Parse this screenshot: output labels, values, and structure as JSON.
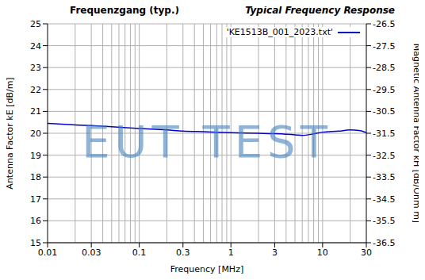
{
  "chart_data": {
    "type": "line",
    "title": "Frequenzgang (typ.)",
    "subtitle": "Typical Frequency Response",
    "x_label": "Frequency [MHz]",
    "y_label": "Antenna Factor kE [dB/m]",
    "y2_label": "Magnetic Antenna Factor kH [dB/Ohm m]",
    "annotations": [
      "EUT TEST"
    ],
    "log": "x",
    "grid": true,
    "legend": "upper right",
    "x": [
      0.01,
      0.02,
      0.03,
      0.05,
      0.1,
      0.2,
      0.3,
      0.5,
      1,
      2,
      3,
      5,
      6,
      8,
      10,
      15,
      20,
      25,
      30
    ],
    "series": [
      {
        "name": "'KE1513B_001_2023.txt'",
        "color": "#0000cc",
        "values": [
          20.45,
          20.38,
          20.35,
          20.3,
          20.22,
          20.15,
          20.1,
          20.07,
          20.03,
          20.0,
          19.98,
          19.93,
          19.9,
          19.97,
          20.05,
          20.1,
          20.15,
          20.13,
          20.03
        ]
      }
    ],
    "xlim": [
      0.01,
      30
    ],
    "xticks": [
      0.01,
      0.03,
      0.1,
      0.3,
      1,
      3,
      10,
      30
    ],
    "ylim": [
      15,
      25
    ],
    "yticks": [
      15,
      16,
      17,
      18,
      19,
      20,
      21,
      22,
      23,
      24,
      25
    ],
    "y2lim": [
      -36.5,
      -26.5
    ],
    "y2ticks": [
      -36.5,
      -35.5,
      -34.5,
      -33.5,
      -32.5,
      -31.5,
      -30.5,
      -29.5,
      -28.5,
      -27.5,
      -26.5
    ]
  }
}
